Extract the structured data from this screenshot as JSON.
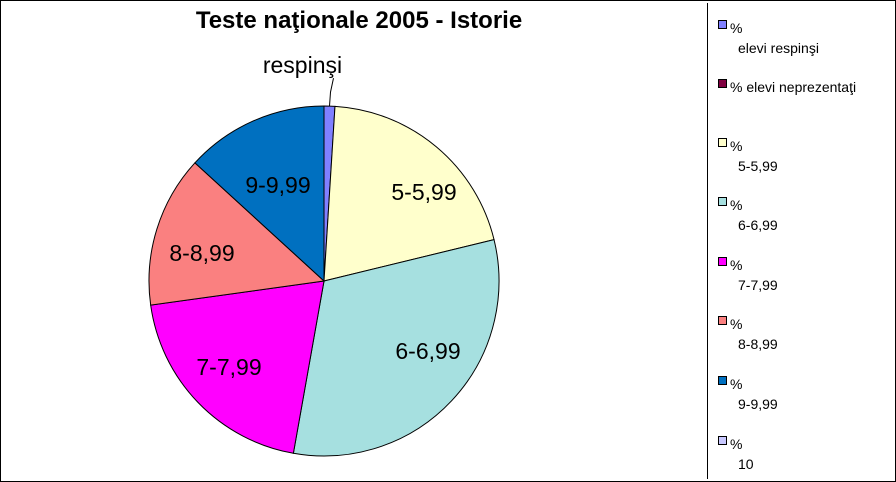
{
  "chart_data": {
    "type": "pie",
    "title": "Teste naţionale 2005 - Istorie",
    "slices": [
      {
        "label": "respinşi",
        "value": 1.0,
        "color": "#8080ff"
      },
      {
        "label": "5-5,99",
        "value": 20.2,
        "color": "#ffffcc"
      },
      {
        "label": "6-6,99",
        "value": 31.6,
        "color": "#a6e0e0"
      },
      {
        "label": "7-7,99",
        "value": 20.0,
        "color": "#ff00ff"
      },
      {
        "label": "8-8,99",
        "value": 14.0,
        "color": "#fa8080"
      },
      {
        "label": "9-9,99",
        "value": 13.2,
        "color": "#0070c0"
      }
    ],
    "legend_position": "right",
    "legend": [
      {
        "label": "%\nelevi respinşi",
        "color": "#8080ff"
      },
      {
        "label": "% elevi neprezentaţi",
        "color": "#800040"
      },
      {
        "label": "%\n5-5,99",
        "color": "#ffffcc"
      },
      {
        "label": "%\n6-6,99",
        "color": "#a6e0e0"
      },
      {
        "label": "%\n7-7,99",
        "color": "#ff00ff"
      },
      {
        "label": "%\n8-8,99",
        "color": "#fa8080"
      },
      {
        "label": "%\n9-9,99",
        "color": "#0070c0"
      },
      {
        "label": "%\n10",
        "color": "#c8c8ff"
      }
    ]
  }
}
